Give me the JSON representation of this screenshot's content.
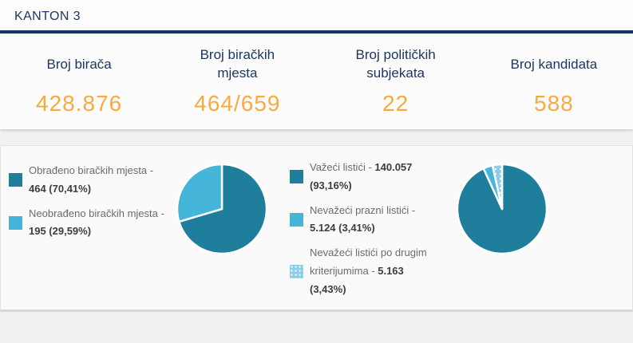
{
  "header": {
    "title": "KANTON 3"
  },
  "stats": [
    {
      "label": "Broj birača",
      "value": "428.876"
    },
    {
      "label": "Broj biračkih mjesta",
      "value": "464/659"
    },
    {
      "label": "Broj političkih subjekata",
      "value": "22"
    },
    {
      "label": "Broj kandidata",
      "value": "588"
    }
  ],
  "colors": {
    "navy": "#1C3664",
    "navy_border": "#113763",
    "orange": "#F9AA3F",
    "teal_dark": "#1F7E9B",
    "blue_light": "#45B5DA",
    "blue_dotted": "#8CCEE9",
    "legend_text_gray": "#6B6B6B",
    "legend_value_dark": "#3D3D3D"
  },
  "chart_data": [
    {
      "type": "pie",
      "name": "biracka-mjesta",
      "legend_position": "left",
      "slices": [
        {
          "label": "Obrađeno biračkih mjesta",
          "value": 464,
          "pct": 70.41,
          "display": "464 (70,41%)",
          "color": "#1F7E9B",
          "pattern": "solid"
        },
        {
          "label": "Neobrađeno biračkih mjesta",
          "value": 195,
          "pct": 29.59,
          "display": "195 (29,59%)",
          "color": "#45B5DA",
          "pattern": "solid"
        }
      ]
    },
    {
      "type": "pie",
      "name": "listici",
      "legend_position": "left",
      "slices": [
        {
          "label": "Važeći listići",
          "value": 140057,
          "pct": 93.16,
          "display": "140.057 (93,16%)",
          "color": "#1F7E9B",
          "pattern": "solid"
        },
        {
          "label": "Nevažeći prazni listići",
          "value": 5124,
          "pct": 3.41,
          "display": "5.124 (3,41%)",
          "color": "#45B5DA",
          "pattern": "solid"
        },
        {
          "label": "Nevažeći listići po drugim kriterijumima",
          "value": 5163,
          "pct": 3.43,
          "display": "5.163 (3,43%)",
          "color": "#8CCEE9",
          "pattern": "dots"
        }
      ]
    }
  ]
}
